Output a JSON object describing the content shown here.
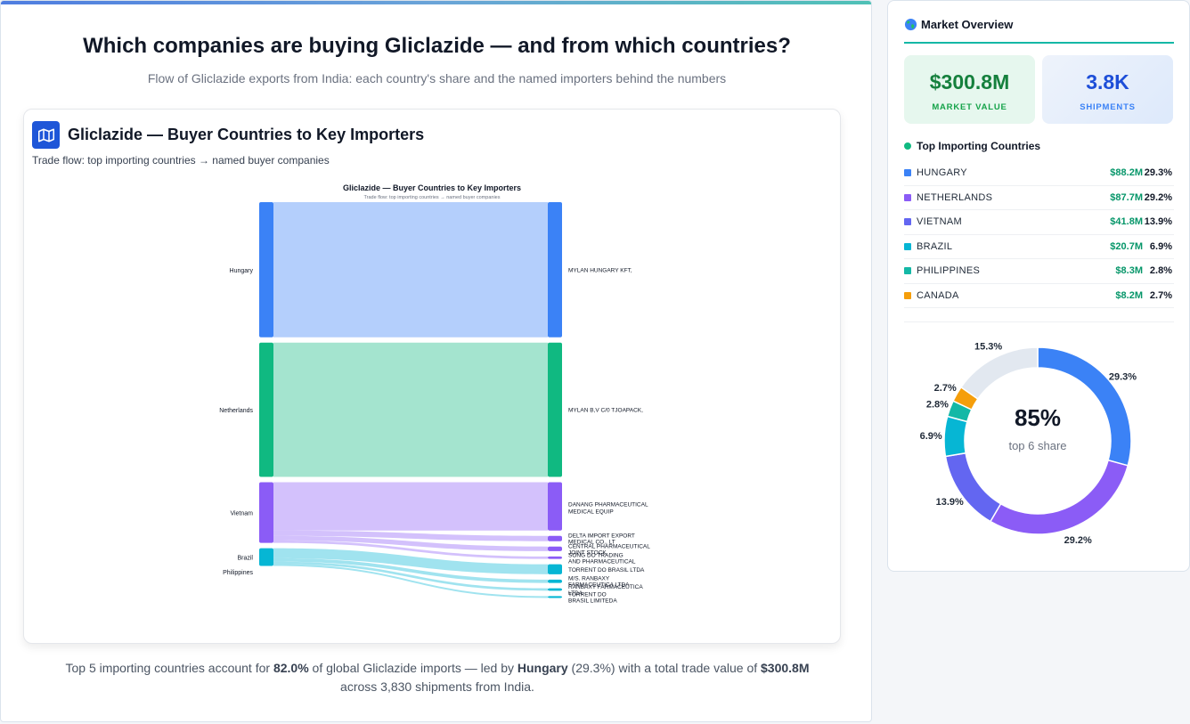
{
  "header": {
    "title": "Which companies are buying Gliclazide — and from which countries?",
    "subtitle": "Flow of Gliclazide exports from India: each country's share and the named importers behind the numbers"
  },
  "card": {
    "icon": "map-icon",
    "title": "Gliclazide — Buyer Countries to Key Importers",
    "subtitle": "Trade flow: top importing countries → named buyer companies"
  },
  "chart_data": {
    "type": "sankey",
    "title": "Gliclazide — Buyer Countries to Key Importers",
    "subtitle": "Trade flow: top importing countries → named buyer companies",
    "sources": [
      {
        "name": "Hungary",
        "color": "#3b82f6"
      },
      {
        "name": "Netherlands",
        "color": "#10b981"
      },
      {
        "name": "Vietnam",
        "color": "#8b5cf6"
      },
      {
        "name": "Brazil",
        "color": "#06b6d4"
      },
      {
        "name": "Philippines",
        "color": "#14b8a6"
      }
    ],
    "targets": [
      "MYLAN HUNGARY KFT,",
      "MYLAN B,V C/0 TJOAPACK,",
      "DANANG PHARMACEUTICAL MEDICAL EQUIP",
      "DELTA IMPORT EXPORT MEDICAL CO., LT",
      "CENTRAL PHARMACEUTICAL JOINT STOCK",
      "SONG DO TRADING AND PHARMACEUTICAL",
      "TORRENT DO BRASIL LTDA",
      "M/S. RANBAXY FARMACEUTICA LTDA",
      "RANBAXY FARMACEUTICA LTDA",
      "TORRENT DO BRASIL LIMITEDA"
    ],
    "links": [
      {
        "source": "Hungary",
        "target": "MYLAN HUNGARY KFT,",
        "value": 88.2
      },
      {
        "source": "Netherlands",
        "target": "MYLAN B,V C/0 TJOAPACK,",
        "value": 87.7
      },
      {
        "source": "Vietnam",
        "target": "DANANG PHARMACEUTICAL MEDICAL EQUIP",
        "value": 31.5
      },
      {
        "source": "Vietnam",
        "target": "DELTA IMPORT EXPORT MEDICAL CO., LT",
        "value": 3.5
      },
      {
        "source": "Vietnam",
        "target": "CENTRAL PHARMACEUTICAL JOINT STOCK",
        "value": 3.0
      },
      {
        "source": "Vietnam",
        "target": "SONG DO TRADING AND PHARMACEUTICAL",
        "value": 1.6
      },
      {
        "source": "Brazil",
        "target": "TORRENT DO BRASIL LTDA",
        "value": 6.5
      },
      {
        "source": "Brazil",
        "target": "M/S. RANBAXY FARMACEUTICA LTDA",
        "value": 2.2
      },
      {
        "source": "Brazil",
        "target": "RANBAXY FARMACEUTICA LTDA",
        "value": 1.6
      },
      {
        "source": "Brazil",
        "target": "TORRENT DO BRASIL LIMITEDA",
        "value": 1.2
      }
    ]
  },
  "footer": {
    "t1": "Top 5 importing countries account for ",
    "b1": "82.0%",
    "t2": " of global Gliclazide imports — led by ",
    "b2": "Hungary",
    "t3": " (29.3%) with a total trade value of ",
    "b3": "$300.8M",
    "t4": "across 3,830 shipments from India."
  },
  "sidebar": {
    "icon": "globe-icon",
    "title": "Market Overview",
    "kpis": [
      {
        "value": "$300.8M",
        "label": "MARKET VALUE"
      },
      {
        "value": "3.8K",
        "label": "SHIPMENTS"
      }
    ],
    "countries_title": "Top Importing Countries",
    "countries": [
      {
        "name": "HUNGARY",
        "value": "$88.2M",
        "pct": "29.3%",
        "color": "#3b82f6"
      },
      {
        "name": "NETHERLANDS",
        "value": "$87.7M",
        "pct": "29.2%",
        "color": "#8b5cf6"
      },
      {
        "name": "VIETNAM",
        "value": "$41.8M",
        "pct": "13.9%",
        "color": "#6366f1"
      },
      {
        "name": "BRAZIL",
        "value": "$20.7M",
        "pct": "6.9%",
        "color": "#06b6d4"
      },
      {
        "name": "PHILIPPINES",
        "value": "$8.3M",
        "pct": "2.8%",
        "color": "#14b8a6"
      },
      {
        "name": "CANADA",
        "value": "$8.2M",
        "pct": "2.7%",
        "color": "#f59e0b"
      }
    ],
    "donut": {
      "center_value": "85%",
      "center_label": "top 6 share",
      "slices": [
        {
          "label": "29.3%",
          "value": 29.3,
          "color": "#3b82f6"
        },
        {
          "label": "29.2%",
          "value": 29.2,
          "color": "#8b5cf6"
        },
        {
          "label": "13.9%",
          "value": 13.9,
          "color": "#6366f1"
        },
        {
          "label": "6.9%",
          "value": 6.9,
          "color": "#06b6d4"
        },
        {
          "label": "2.8%",
          "value": 2.8,
          "color": "#14b8a6"
        },
        {
          "label": "2.7%",
          "value": 2.7,
          "color": "#f59e0b"
        },
        {
          "label": "15.3%",
          "value": 15.3,
          "color": "#e2e8f0"
        }
      ]
    }
  }
}
